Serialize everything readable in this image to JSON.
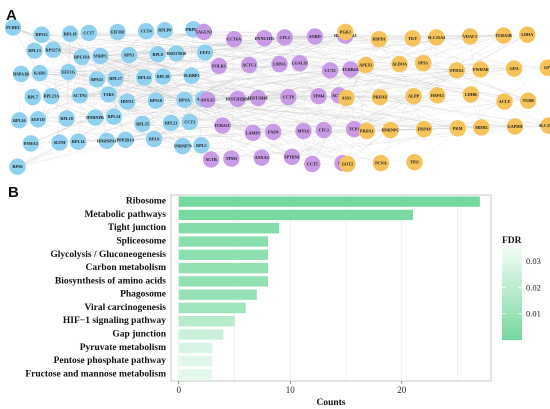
{
  "panel_a": {
    "letter": "A",
    "clusters": [
      {
        "name": "blue",
        "color": "#8fd1ef",
        "nodes": [
          "PCBD1",
          "RPS12",
          "RPL18",
          "CCT7",
          "EIF3M",
          "CCT4",
          "RPLP0",
          "PRPF31",
          "RPL13",
          "RPS27A",
          "RPL18A",
          "SNRPC",
          "RPS3",
          "RPL8",
          "HSD17B10",
          "EEF2",
          "HSPA1B",
          "KARS",
          "EEF1G",
          "RPS21",
          "RPL17",
          "RPL24",
          "RPL38",
          "SLRBP1",
          "RPL7",
          "RPL23A",
          "ACTN1",
          "TARS",
          "HINT1",
          "RPS10",
          "RPSA",
          "ABCF1",
          "RPL26",
          "EEF1D",
          "RPL10",
          "HNRNPK",
          "RPL34",
          "RPL35",
          "RPL21",
          "CCT3",
          "PSMA3",
          "SLTM",
          "RPL14",
          "HNRNPA1",
          "PPP2R1A",
          "RPL9",
          "SNRNP70",
          "RPL5",
          "RPS6"
        ]
      },
      {
        "name": "purple",
        "color": "#c99be6",
        "nodes": [
          "TAGLN2",
          "CCT6A",
          "DYNC1H1",
          "CFL2",
          "SORD",
          "HIST1H2BJ",
          "FOLR1",
          "ACTC1",
          "LMNA",
          "LGALS1",
          "CCT2",
          "TUBB4A",
          "ANXA5",
          "HIST2H2BM",
          "HIST1H4F",
          "CCT8",
          "TPM4",
          "ACTN4",
          "TUBA1C",
          "LAMP1",
          "FASN",
          "MYL6",
          "CFL1",
          "TCP1",
          "ACTB",
          "TPM3",
          "ANXA2",
          "SPTBN1",
          "CCT5",
          "EZR"
        ]
      },
      {
        "name": "orange",
        "color": "#f5c35a",
        "nodes": [
          "PGK1",
          "HSPD1",
          "TKT",
          "SLC25A4",
          "VDAC1",
          "TUBA1B",
          "LDHA",
          "APEX1",
          "ALDOA",
          "PPIA",
          "PFDX2",
          "YWHAB",
          "GDA",
          "GPI",
          "ASS1",
          "PRDX6",
          "ALPP",
          "HSPA5",
          "LDHB",
          "ACLY",
          "TUBB",
          "PRDX1",
          "HNRNPC",
          "HSPA8",
          "PKM",
          "MDH2",
          "GAPDH",
          "SLC25A13",
          "GOT2",
          "PCNA",
          "TPI1"
        ]
      }
    ]
  },
  "panel_b": {
    "letter": "B",
    "chart_data": {
      "type": "bar",
      "orientation": "horizontal",
      "categories": [
        "Ribosome",
        "Metabolic pathways",
        "Tight junction",
        "Spliceosome",
        "Glycolysis / Gluconeogenesis",
        "Carbon metabolism",
        "Biosynthesis of amino acids",
        "Phagosome",
        "Viral carcinogenesis",
        "HIF−1 signaling pathway",
        "Gap junction",
        "Pyruvate metabolism",
        "Pentose phosphate pathway",
        "Fructose and mannose metabolism"
      ],
      "values": [
        27,
        21,
        9,
        8,
        8,
        8,
        8,
        7,
        6,
        5,
        4,
        3,
        3,
        3
      ],
      "fdr": [
        0.0001,
        0.001,
        0.004,
        0.006,
        0.007,
        0.008,
        0.008,
        0.009,
        0.012,
        0.018,
        0.024,
        0.028,
        0.03,
        0.031
      ],
      "xlabel": "Counts",
      "ylabel": "",
      "xticks": [
        0,
        10,
        20
      ],
      "xlim": [
        -0.7,
        28
      ],
      "legend": {
        "title": "FDR",
        "ticks": [
          "0.03",
          "0.02",
          "0.01"
        ],
        "tick_values": [
          0.03,
          0.02,
          0.01
        ],
        "range": [
          0.0,
          0.035
        ],
        "color_low": "#74d99f",
        "color_high": "#f2fbf5",
        "placement": "right"
      },
      "grid": true
    }
  }
}
